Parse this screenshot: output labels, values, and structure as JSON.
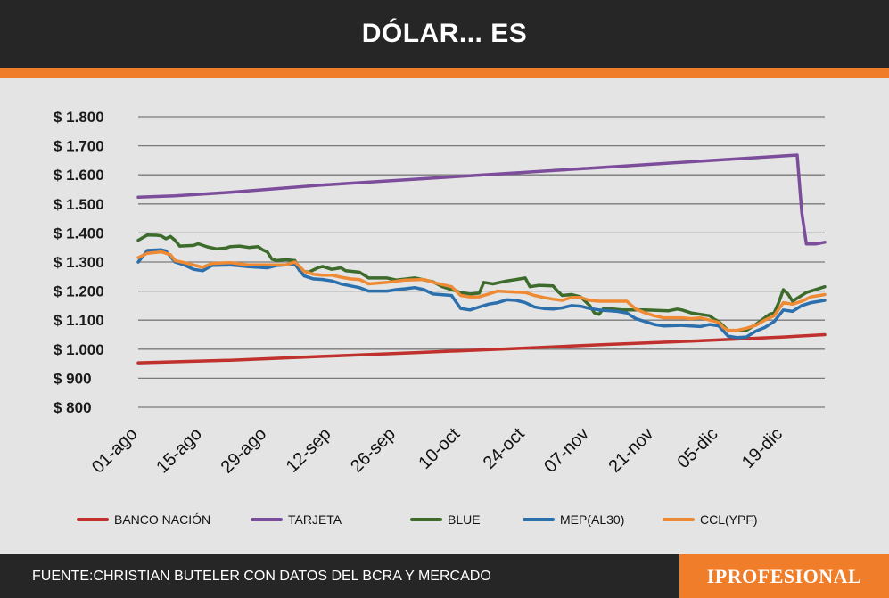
{
  "header": {
    "title": "DÓLAR... ES"
  },
  "footer": {
    "source": "FUENTE:CHRISTIAN BUTELER CON DATOS DEL BCRA Y MERCADO",
    "brand": "IPROFESIONAL"
  },
  "colors": {
    "accent": "#f07d2a",
    "grid": "#7a7a7a"
  },
  "chart_data": {
    "type": "line",
    "title": "",
    "xlabel": "",
    "ylabel": "",
    "ylim": [
      800,
      1800
    ],
    "yticks": [
      800,
      900,
      1000,
      1100,
      1200,
      1300,
      1400,
      1500,
      1600,
      1700,
      1800
    ],
    "ytick_labels": [
      "$ 800",
      "$ 900",
      "$ 1.000",
      "$ 1.100",
      "$ 1.200",
      "$ 1.300",
      "$ 1.400",
      "$ 1.500",
      "$ 1.600",
      "$ 1.700",
      "$ 1.800"
    ],
    "xtick_labels": [
      "01-ago",
      "15-ago",
      "29-ago",
      "12-sep",
      "26-sep",
      "10-oct",
      "24-oct",
      "07-nov",
      "21-nov",
      "05-dic",
      "19-dic"
    ],
    "x_range_days": [
      0,
      149
    ],
    "xtick_days": [
      0,
      14,
      28,
      42,
      56,
      70,
      84,
      98,
      112,
      126,
      140
    ],
    "grid": true,
    "legend_position": "bottom",
    "series": [
      {
        "name": "BANCO NACIÓN",
        "color": "#c0302c",
        "points": [
          [
            0,
            953
          ],
          [
            20,
            962
          ],
          [
            40,
            975
          ],
          [
            60,
            988
          ],
          [
            80,
            1001
          ],
          [
            100,
            1015
          ],
          [
            120,
            1028
          ],
          [
            140,
            1042
          ],
          [
            149,
            1050
          ]
        ]
      },
      {
        "name": "TARJETA",
        "color": "#7c4d9b",
        "points": [
          [
            0,
            1523
          ],
          [
            8,
            1528
          ],
          [
            20,
            1540
          ],
          [
            40,
            1565
          ],
          [
            60,
            1585
          ],
          [
            80,
            1605
          ],
          [
            100,
            1625
          ],
          [
            120,
            1645
          ],
          [
            140,
            1665
          ],
          [
            143,
            1668
          ],
          [
            144,
            1470
          ],
          [
            145,
            1362
          ],
          [
            147,
            1362
          ],
          [
            149,
            1368
          ]
        ]
      },
      {
        "name": "BLUE",
        "color": "#3c6b2c",
        "points": [
          [
            0,
            1375
          ],
          [
            2,
            1393
          ],
          [
            4,
            1392
          ],
          [
            5,
            1390
          ],
          [
            6,
            1380
          ],
          [
            7,
            1388
          ],
          [
            8,
            1375
          ],
          [
            9,
            1355
          ],
          [
            12,
            1357
          ],
          [
            13,
            1363
          ],
          [
            15,
            1352
          ],
          [
            17,
            1345
          ],
          [
            19,
            1348
          ],
          [
            20,
            1353
          ],
          [
            22,
            1355
          ],
          [
            24,
            1350
          ],
          [
            26,
            1353
          ],
          [
            27,
            1342
          ],
          [
            28,
            1335
          ],
          [
            29,
            1310
          ],
          [
            30,
            1305
          ],
          [
            32,
            1308
          ],
          [
            34,
            1305
          ],
          [
            35,
            1270
          ],
          [
            37,
            1265
          ],
          [
            39,
            1280
          ],
          [
            40,
            1285
          ],
          [
            42,
            1275
          ],
          [
            44,
            1280
          ],
          [
            45,
            1270
          ],
          [
            48,
            1265
          ],
          [
            50,
            1245
          ],
          [
            54,
            1245
          ],
          [
            56,
            1238
          ],
          [
            60,
            1245
          ],
          [
            64,
            1232
          ],
          [
            66,
            1215
          ],
          [
            70,
            1195
          ],
          [
            72,
            1190
          ],
          [
            74,
            1193
          ],
          [
            75,
            1230
          ],
          [
            77,
            1225
          ],
          [
            80,
            1235
          ],
          [
            82,
            1240
          ],
          [
            84,
            1245
          ],
          [
            85,
            1215
          ],
          [
            87,
            1220
          ],
          [
            90,
            1218
          ],
          [
            91,
            1200
          ],
          [
            92,
            1185
          ],
          [
            94,
            1188
          ],
          [
            96,
            1180
          ],
          [
            98,
            1150
          ],
          [
            99,
            1125
          ],
          [
            100,
            1120
          ],
          [
            101,
            1140
          ],
          [
            103,
            1138
          ],
          [
            105,
            1135
          ],
          [
            110,
            1135
          ],
          [
            115,
            1132
          ],
          [
            117,
            1138
          ],
          [
            118,
            1135
          ],
          [
            120,
            1125
          ],
          [
            122,
            1120
          ],
          [
            124,
            1115
          ],
          [
            125,
            1103
          ],
          [
            126,
            1095
          ],
          [
            128,
            1065
          ],
          [
            130,
            1063
          ],
          [
            132,
            1065
          ],
          [
            134,
            1085
          ],
          [
            137,
            1120
          ],
          [
            138,
            1125
          ],
          [
            139,
            1160
          ],
          [
            140,
            1205
          ],
          [
            141,
            1190
          ],
          [
            142,
            1165
          ],
          [
            145,
            1195
          ],
          [
            149,
            1215
          ]
        ]
      },
      {
        "name": "MEP(AL30)",
        "color": "#2b6fad",
        "points": [
          [
            0,
            1300
          ],
          [
            2,
            1340
          ],
          [
            5,
            1342
          ],
          [
            6,
            1338
          ],
          [
            8,
            1300
          ],
          [
            10,
            1290
          ],
          [
            12,
            1275
          ],
          [
            14,
            1270
          ],
          [
            16,
            1288
          ],
          [
            20,
            1290
          ],
          [
            24,
            1284
          ],
          [
            28,
            1280
          ],
          [
            30,
            1288
          ],
          [
            34,
            1292
          ],
          [
            36,
            1252
          ],
          [
            38,
            1242
          ],
          [
            40,
            1240
          ],
          [
            42,
            1235
          ],
          [
            44,
            1225
          ],
          [
            46,
            1218
          ],
          [
            48,
            1212
          ],
          [
            50,
            1200
          ],
          [
            54,
            1200
          ],
          [
            56,
            1205
          ],
          [
            58,
            1208
          ],
          [
            60,
            1212
          ],
          [
            62,
            1205
          ],
          [
            64,
            1190
          ],
          [
            68,
            1185
          ],
          [
            70,
            1140
          ],
          [
            72,
            1135
          ],
          [
            74,
            1145
          ],
          [
            76,
            1155
          ],
          [
            78,
            1160
          ],
          [
            80,
            1170
          ],
          [
            82,
            1168
          ],
          [
            84,
            1160
          ],
          [
            86,
            1145
          ],
          [
            88,
            1140
          ],
          [
            90,
            1138
          ],
          [
            92,
            1142
          ],
          [
            94,
            1150
          ],
          [
            96,
            1148
          ],
          [
            98,
            1140
          ],
          [
            100,
            1135
          ],
          [
            104,
            1130
          ],
          [
            106,
            1125
          ],
          [
            108,
            1105
          ],
          [
            110,
            1095
          ],
          [
            112,
            1085
          ],
          [
            114,
            1080
          ],
          [
            118,
            1082
          ],
          [
            122,
            1078
          ],
          [
            124,
            1085
          ],
          [
            126,
            1080
          ],
          [
            128,
            1045
          ],
          [
            130,
            1040
          ],
          [
            132,
            1042
          ],
          [
            134,
            1062
          ],
          [
            136,
            1075
          ],
          [
            138,
            1095
          ],
          [
            140,
            1135
          ],
          [
            142,
            1130
          ],
          [
            144,
            1150
          ],
          [
            146,
            1160
          ],
          [
            149,
            1168
          ]
        ]
      },
      {
        "name": "CCL(YPF)",
        "color": "#ee8a34",
        "points": [
          [
            0,
            1315
          ],
          [
            2,
            1330
          ],
          [
            5,
            1335
          ],
          [
            7,
            1325
          ],
          [
            8,
            1305
          ],
          [
            10,
            1298
          ],
          [
            12,
            1290
          ],
          [
            14,
            1282
          ],
          [
            16,
            1295
          ],
          [
            20,
            1298
          ],
          [
            24,
            1290
          ],
          [
            28,
            1290
          ],
          [
            32,
            1290
          ],
          [
            34,
            1300
          ],
          [
            35,
            1285
          ],
          [
            36,
            1268
          ],
          [
            38,
            1258
          ],
          [
            40,
            1255
          ],
          [
            42,
            1255
          ],
          [
            44,
            1248
          ],
          [
            46,
            1242
          ],
          [
            48,
            1240
          ],
          [
            50,
            1225
          ],
          [
            54,
            1230
          ],
          [
            58,
            1238
          ],
          [
            62,
            1240
          ],
          [
            64,
            1230
          ],
          [
            68,
            1215
          ],
          [
            70,
            1185
          ],
          [
            72,
            1180
          ],
          [
            74,
            1180
          ],
          [
            76,
            1190
          ],
          [
            78,
            1200
          ],
          [
            80,
            1198
          ],
          [
            84,
            1195
          ],
          [
            86,
            1185
          ],
          [
            88,
            1178
          ],
          [
            90,
            1172
          ],
          [
            92,
            1168
          ],
          [
            94,
            1178
          ],
          [
            96,
            1178
          ],
          [
            98,
            1168
          ],
          [
            100,
            1165
          ],
          [
            104,
            1165
          ],
          [
            106,
            1165
          ],
          [
            108,
            1138
          ],
          [
            110,
            1125
          ],
          [
            112,
            1115
          ],
          [
            114,
            1108
          ],
          [
            118,
            1108
          ],
          [
            120,
            1105
          ],
          [
            122,
            1108
          ],
          [
            124,
            1100
          ],
          [
            126,
            1092
          ],
          [
            127,
            1075
          ],
          [
            128,
            1065
          ],
          [
            130,
            1065
          ],
          [
            132,
            1072
          ],
          [
            134,
            1082
          ],
          [
            136,
            1100
          ],
          [
            138,
            1115
          ],
          [
            140,
            1160
          ],
          [
            142,
            1155
          ],
          [
            144,
            1165
          ],
          [
            146,
            1180
          ],
          [
            149,
            1188
          ]
        ]
      }
    ]
  }
}
